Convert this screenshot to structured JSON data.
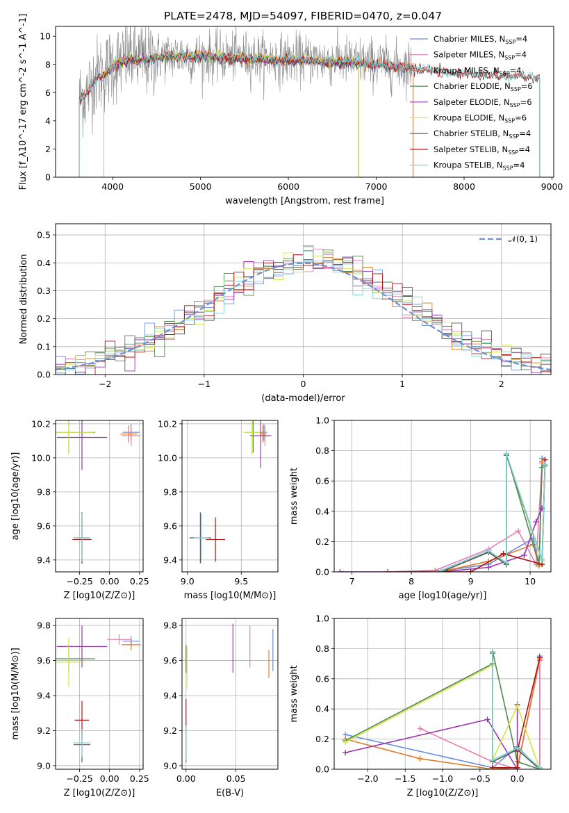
{
  "title": "PLATE=2478, MJD=54097, FIBERID=0470, z=0.047",
  "colors": {
    "Chabrier MILES": "#6b8fdb",
    "Salpeter MILES": "#e67fb5",
    "Kroupa MILES": "#e07b2a",
    "Chabrier ELODIE": "#4f8a4f",
    "Salpeter ELODIE": "#9a35b0",
    "Kroupa ELODIE": "#d2e640",
    "Chabrier STELIB": "#555555",
    "Salpeter STELIB": "#b01010",
    "Kroupa STELIB": "#7fd2d6",
    "data": "#8a8a8a",
    "gaussian": "#6b8fdb",
    "grid": "#b0b0b0"
  },
  "chart_data": [
    {
      "id": "spectrum",
      "type": "line",
      "xlabel": "wavelength [Angstrom, rest frame]",
      "ylabel": "Flux [f_λ10^-17 erg cm^-2 s^-1 A^-1]",
      "xlim": [
        3350,
        9020
      ],
      "ylim": [
        0,
        10.7
      ],
      "xticks": [
        4000,
        5000,
        6000,
        7000,
        8000,
        9000
      ],
      "yticks": [
        0,
        2,
        4,
        6,
        8,
        10
      ],
      "grid": false,
      "legend_position": "top-right",
      "legend": [
        {
          "base": "Chabrier MILES, N",
          "sub": "SSP",
          "tail": "=4"
        },
        {
          "base": "Salpeter MILES, N",
          "sub": "SSP",
          "tail": "=4"
        },
        {
          "base": "Kroupa MILES, N",
          "sub": "SSP",
          "tail": "=4"
        },
        {
          "base": "Chabrier ELODIE, N",
          "sub": "SSP",
          "tail": "=6"
        },
        {
          "base": "Salpeter ELODIE, N",
          "sub": "SSP",
          "tail": "=6"
        },
        {
          "base": "Kroupa ELODIE, N",
          "sub": "SSP",
          "tail": "=6"
        },
        {
          "base": "Chabrier STELIB, N",
          "sub": "SSP",
          "tail": "=4"
        },
        {
          "base": "Salpeter STELIB, N",
          "sub": "SSP",
          "tail": "=4"
        },
        {
          "base": "Kroupa STELIB, N",
          "sub": "SSP",
          "tail": "=4"
        }
      ],
      "data_series": {
        "name": "data",
        "x": [
          3620,
          3700,
          3800,
          3900,
          4000,
          4100,
          4200,
          4300,
          4400,
          4500,
          4600,
          4700,
          4800,
          4900,
          5000,
          5200,
          5400,
          5600,
          5800,
          6000,
          6200,
          6400,
          6600,
          6800,
          7000,
          7200,
          7400
        ],
        "y": [
          5.6,
          5.9,
          7.2,
          7.4,
          8.0,
          8.2,
          8.6,
          8.4,
          8.4,
          8.5,
          8.6,
          8.6,
          8.7,
          8.5,
          8.6,
          8.5,
          8.6,
          8.5,
          8.4,
          8.4,
          8.4,
          8.3,
          8.3,
          8.2,
          8.1,
          7.9,
          7.9
        ],
        "noise": 1.1
      },
      "model_continuum": {
        "x": [
          3620,
          3700,
          3800,
          3900,
          4000,
          4100,
          4200,
          4300,
          4400,
          4500,
          4600,
          4700,
          4800,
          4900,
          5000,
          5200,
          5400,
          5600,
          5800,
          6000,
          6200,
          6400,
          6600,
          6800,
          7000,
          7200,
          7400,
          7600,
          7800,
          8000,
          8200,
          8400,
          8600,
          8800
        ],
        "y": [
          5.6,
          5.9,
          7.0,
          7.2,
          7.9,
          8.1,
          8.4,
          8.3,
          8.4,
          8.5,
          8.6,
          8.6,
          8.6,
          8.5,
          8.6,
          8.5,
          8.5,
          8.4,
          8.3,
          8.3,
          8.3,
          8.2,
          8.2,
          8.1,
          8.0,
          7.8,
          7.8,
          7.6,
          7.4,
          7.4,
          7.3,
          7.2,
          7.2,
          7.1
        ]
      },
      "model_extents": [
        {
          "name": "Chabrier MILES",
          "xmin": 3620,
          "xmax": 7420
        },
        {
          "name": "Salpeter MILES",
          "xmin": 3620,
          "xmax": 7420
        },
        {
          "name": "Kroupa MILES",
          "xmin": 3620,
          "xmax": 7420
        },
        {
          "name": "Chabrier ELODIE",
          "xmin": 3900,
          "xmax": 6800
        },
        {
          "name": "Salpeter ELODIE",
          "xmin": 3900,
          "xmax": 6800
        },
        {
          "name": "Kroupa ELODIE",
          "xmin": 3900,
          "xmax": 6800
        },
        {
          "name": "Chabrier STELIB",
          "xmin": 3620,
          "xmax": 8860
        },
        {
          "name": "Salpeter STELIB",
          "xmin": 3620,
          "xmax": 8860
        },
        {
          "name": "Kroupa STELIB",
          "xmin": 3620,
          "xmax": 8860
        }
      ]
    },
    {
      "id": "residuals",
      "type": "histogram",
      "xlabel": "(data-model)/error",
      "ylabel": "Normed distribution",
      "xlim": [
        -2.5,
        2.5
      ],
      "ylim": [
        0,
        0.54
      ],
      "xticks": [
        -2,
        -1,
        0,
        1,
        2
      ],
      "yticks": [
        0.0,
        0.1,
        0.2,
        0.3,
        0.4,
        0.5
      ],
      "grid": true,
      "legend_position": "top-right",
      "gaussian_label": "𝒩(0, 1)",
      "bin_width": 0.1
    },
    {
      "id": "age-vs-Z",
      "type": "scatter",
      "xlabel": "Z [log10(Z/Z⊙)]",
      "ylabel": "age [log10(age/yr)]",
      "xlim": [
        -0.45,
        0.28
      ],
      "ylim": [
        9.33,
        10.22
      ],
      "xticks": [
        -0.25,
        0.0,
        0.25
      ],
      "yticks": [
        9.4,
        9.6,
        9.8,
        10.0,
        10.2
      ],
      "grid": true,
      "points": [
        {
          "name": "Chabrier MILES",
          "x": 0.18,
          "y": 10.15,
          "xerr": 0.07,
          "yerr": 0.05
        },
        {
          "name": "Salpeter MILES",
          "x": 0.18,
          "y": 10.13,
          "xerr": 0.08,
          "yerr": 0.06
        },
        {
          "name": "Kroupa MILES",
          "x": 0.16,
          "y": 10.14,
          "xerr": 0.07,
          "yerr": 0.05
        },
        {
          "name": "Chabrier ELODIE",
          "x": -0.34,
          "y": 10.15,
          "xerr": 0.22,
          "yerr": 0.12
        },
        {
          "name": "Salpeter ELODIE",
          "x": -0.23,
          "y": 10.12,
          "xerr": 0.21,
          "yerr": 0.19
        },
        {
          "name": "Kroupa ELODIE",
          "x": -0.34,
          "y": 10.15,
          "xerr": 0.21,
          "yerr": 0.13
        },
        {
          "name": "Chabrier STELIB",
          "x": -0.23,
          "y": 9.53,
          "xerr": 0.07,
          "yerr": 0.15
        },
        {
          "name": "Salpeter STELIB",
          "x": -0.23,
          "y": 9.52,
          "xerr": 0.08,
          "yerr": 0.14
        },
        {
          "name": "Kroupa STELIB",
          "x": -0.23,
          "y": 9.53,
          "xerr": 0.07,
          "yerr": 0.14
        }
      ]
    },
    {
      "id": "age-vs-mass",
      "type": "scatter",
      "xlabel": "mass [log10(M/M⊙)]",
      "ylabel": "",
      "xlim": [
        8.95,
        9.84
      ],
      "ylim": [
        9.33,
        10.22
      ],
      "xticks": [
        9.0,
        9.5
      ],
      "yticks": [
        9.4,
        9.6,
        9.8,
        10.0,
        10.2
      ],
      "grid": true,
      "points": [
        {
          "name": "Chabrier MILES",
          "x": 9.71,
          "y": 10.15,
          "xerr": 0.03,
          "yerr": 0.05
        },
        {
          "name": "Salpeter MILES",
          "x": 9.72,
          "y": 10.13,
          "xerr": 0.03,
          "yerr": 0.06
        },
        {
          "name": "Kroupa MILES",
          "x": 9.7,
          "y": 10.14,
          "xerr": 0.03,
          "yerr": 0.05
        },
        {
          "name": "Chabrier ELODIE",
          "x": 9.61,
          "y": 10.15,
          "xerr": 0.08,
          "yerr": 0.12
        },
        {
          "name": "Salpeter ELODIE",
          "x": 9.68,
          "y": 10.13,
          "xerr": 0.1,
          "yerr": 0.19
        },
        {
          "name": "Kroupa ELODIE",
          "x": 9.6,
          "y": 10.15,
          "xerr": 0.08,
          "yerr": 0.13
        },
        {
          "name": "Chabrier STELIB",
          "x": 9.12,
          "y": 9.53,
          "xerr": 0.1,
          "yerr": 0.15
        },
        {
          "name": "Salpeter STELIB",
          "x": 9.26,
          "y": 9.52,
          "xerr": 0.09,
          "yerr": 0.13
        },
        {
          "name": "Kroupa STELIB",
          "x": 9.13,
          "y": 9.53,
          "xerr": 0.07,
          "yerr": 0.14
        }
      ]
    },
    {
      "id": "weight-vs-age",
      "type": "line",
      "xlabel": "age [log10(age/yr)]",
      "ylabel": "mass weight",
      "xlim": [
        6.7,
        10.35
      ],
      "ylim": [
        0,
        1.0
      ],
      "xticks": [
        7,
        8,
        9,
        10
      ],
      "yticks": [
        0.0,
        0.2,
        0.4,
        0.6,
        0.8,
        1.0
      ],
      "grid": true,
      "series": [
        {
          "name": "Chabrier MILES",
          "x": [
            7.6,
            8.6,
            9.3,
            10.05,
            10.15,
            10.2
          ],
          "y": [
            0.0,
            0.01,
            0.05,
            0.22,
            0.05,
            0.75
          ]
        },
        {
          "name": "Salpeter MILES",
          "x": [
            7.6,
            8.4,
            9.3,
            9.8,
            10.1,
            10.2
          ],
          "y": [
            0.0,
            0.01,
            0.15,
            0.27,
            0.05,
            0.72
          ]
        },
        {
          "name": "Kroupa MILES",
          "x": [
            7.6,
            8.6,
            9.3,
            10.05,
            10.15,
            10.2
          ],
          "y": [
            0.0,
            0.01,
            0.07,
            0.18,
            0.04,
            0.73
          ]
        },
        {
          "name": "Chabrier ELODIE",
          "x": [
            8.5,
            9.3,
            9.6,
            9.6,
            10.15,
            10.2
          ],
          "y": [
            0.0,
            0.13,
            0.05,
            0.78,
            0.05,
            0.69
          ]
        },
        {
          "name": "Salpeter ELODIE",
          "x": [
            6.8,
            8.5,
            9.3,
            9.9,
            10.1,
            10.2
          ],
          "y": [
            0.0,
            0.0,
            0.03,
            0.11,
            0.33,
            0.42
          ]
        },
        {
          "name": "Kroupa ELODIE",
          "x": [
            8.5,
            9.3,
            9.6,
            9.6,
            10.2,
            10.25
          ],
          "y": [
            0.0,
            0.13,
            0.05,
            0.77,
            0.07,
            0.7
          ]
        },
        {
          "name": "Chabrier STELIB",
          "x": [
            8.5,
            9.3,
            9.6,
            9.6,
            10.2,
            10.25
          ],
          "y": [
            0.0,
            0.13,
            0.05,
            0.77,
            0.08,
            0.7
          ]
        },
        {
          "name": "Salpeter STELIB",
          "x": [
            8.6,
            9.0,
            9.55,
            10.2,
            10.25
          ],
          "y": [
            0.0,
            0.0,
            0.12,
            0.05,
            0.74
          ]
        },
        {
          "name": "Kroupa STELIB",
          "x": [
            8.5,
            9.3,
            9.6,
            9.6,
            10.2,
            10.25
          ],
          "y": [
            0.01,
            0.14,
            0.06,
            0.78,
            0.08,
            0.71
          ]
        }
      ]
    },
    {
      "id": "mass-vs-Z",
      "type": "scatter",
      "xlabel": "Z [log10(Z/Z⊙)]",
      "ylabel": "mass [log10(M/M⊙)]",
      "xlim": [
        -0.45,
        0.28
      ],
      "ylim": [
        8.98,
        9.84
      ],
      "xticks": [
        -0.25,
        0.0,
        0.25
      ],
      "yticks": [
        9.0,
        9.2,
        9.4,
        9.6,
        9.8
      ],
      "grid": true,
      "points": [
        {
          "name": "Chabrier MILES",
          "x": 0.18,
          "y": 9.71,
          "xerr": 0.07,
          "yerr": 0.03
        },
        {
          "name": "Salpeter MILES",
          "x": 0.08,
          "y": 9.72,
          "xerr": 0.1,
          "yerr": 0.03
        },
        {
          "name": "Kroupa MILES",
          "x": 0.18,
          "y": 9.69,
          "xerr": 0.08,
          "yerr": 0.03
        },
        {
          "name": "Chabrier ELODIE",
          "x": -0.34,
          "y": 9.61,
          "xerr": 0.22,
          "yerr": 0.08
        },
        {
          "name": "Salpeter ELODIE",
          "x": -0.23,
          "y": 9.68,
          "xerr": 0.21,
          "yerr": 0.12
        },
        {
          "name": "Kroupa ELODIE",
          "x": -0.34,
          "y": 9.59,
          "xerr": 0.13,
          "yerr": 0.14
        },
        {
          "name": "Chabrier STELIB",
          "x": -0.23,
          "y": 9.12,
          "xerr": 0.07,
          "yerr": 0.1
        },
        {
          "name": "Salpeter STELIB",
          "x": -0.23,
          "y": 9.26,
          "xerr": 0.06,
          "yerr": 0.11
        },
        {
          "name": "Kroupa STELIB",
          "x": -0.23,
          "y": 9.13,
          "xerr": 0.07,
          "yerr": 0.08
        }
      ]
    },
    {
      "id": "mass-vs-EBV",
      "type": "scatter",
      "xlabel": "E(B-V)",
      "ylabel": "",
      "xlim": [
        -0.004,
        0.092
      ],
      "ylim": [
        8.98,
        9.84
      ],
      "xticks": [
        0.0,
        0.05
      ],
      "yticks": [
        9.0,
        9.2,
        9.4,
        9.6,
        9.8
      ],
      "grid": true,
      "points": [
        {
          "name": "Chabrier MILES",
          "x": 0.087,
          "y": 9.66,
          "xerr": 0.0,
          "yerr": 0.12
        },
        {
          "name": "Salpeter MILES",
          "x": 0.064,
          "y": 9.68,
          "xerr": 0.0,
          "yerr": 0.12
        },
        {
          "name": "Kroupa MILES",
          "x": 0.083,
          "y": 9.58,
          "xerr": 0.0,
          "yerr": 0.08
        },
        {
          "name": "Chabrier ELODIE",
          "x": 0.0,
          "y": 9.61,
          "xerr": 0.0,
          "yerr": 0.08
        },
        {
          "name": "Salpeter ELODIE",
          "x": 0.047,
          "y": 9.67,
          "xerr": 0.0,
          "yerr": 0.14
        },
        {
          "name": "Kroupa ELODIE",
          "x": 0.001,
          "y": 9.56,
          "xerr": 0.0,
          "yerr": 0.12
        },
        {
          "name": "Chabrier STELIB",
          "x": 0.0,
          "y": 9.12,
          "xerr": 0.0,
          "yerr": 0.1
        },
        {
          "name": "Salpeter STELIB",
          "x": 0.0,
          "y": 9.3,
          "xerr": 0.0,
          "yerr": 0.08
        },
        {
          "name": "Kroupa STELIB",
          "x": 0.0,
          "y": 9.13,
          "xerr": 0.0,
          "yerr": 0.1
        }
      ]
    },
    {
      "id": "weight-vs-Z",
      "type": "line",
      "xlabel": "Z [log10(Z/Z⊙)]",
      "ylabel": "mass weight",
      "xlim": [
        -2.45,
        0.45
      ],
      "ylim": [
        0,
        1.0
      ],
      "xticks": [
        -2.0,
        -1.5,
        -1.0,
        -0.5,
        0.0
      ],
      "yticks": [
        0.0,
        0.2,
        0.4,
        0.6,
        0.8,
        1.0
      ],
      "grid": true,
      "series": [
        {
          "name": "Chabrier MILES",
          "x": [
            -2.3,
            -0.33,
            0.0,
            0.3,
            0.3
          ],
          "y": [
            0.23,
            0.01,
            0.15,
            0.0,
            0.75
          ]
        },
        {
          "name": "Salpeter MILES",
          "x": [
            -1.3,
            -0.33,
            0.0,
            0.3,
            0.3
          ],
          "y": [
            0.27,
            0.05,
            0.0,
            0.72,
            0.01
          ]
        },
        {
          "name": "Kroupa MILES",
          "x": [
            -2.3,
            -1.3,
            -0.33,
            0.0,
            0.3
          ],
          "y": [
            0.2,
            0.07,
            0.0,
            0.01,
            0.73
          ]
        },
        {
          "name": "Chabrier ELODIE",
          "x": [
            -2.3,
            -0.33,
            -0.33,
            0.0,
            0.3
          ],
          "y": [
            0.19,
            0.7,
            0.78,
            0.05,
            0.0
          ]
        },
        {
          "name": "Salpeter ELODIE",
          "x": [
            -2.3,
            -0.4,
            0.0,
            0.0
          ],
          "y": [
            0.11,
            0.33,
            0.0,
            0.43
          ]
        },
        {
          "name": "Kroupa ELODIE",
          "x": [
            -2.3,
            -0.33,
            -0.33,
            0.0,
            0.3
          ],
          "y": [
            0.18,
            0.69,
            0.06,
            0.42,
            0.0
          ]
        },
        {
          "name": "Chabrier STELIB",
          "x": [
            -0.33,
            -0.33,
            0.0,
            0.3
          ],
          "y": [
            0.77,
            0.05,
            0.13,
            0.0
          ]
        },
        {
          "name": "Salpeter STELIB",
          "x": [
            -0.33,
            0.0,
            0.0,
            0.3
          ],
          "y": [
            0.01,
            0.01,
            0.12,
            0.74
          ]
        },
        {
          "name": "Kroupa STELIB",
          "x": [
            -0.33,
            -0.33,
            0.0,
            0.3
          ],
          "y": [
            0.78,
            0.06,
            0.14,
            0.01
          ]
        }
      ]
    }
  ]
}
